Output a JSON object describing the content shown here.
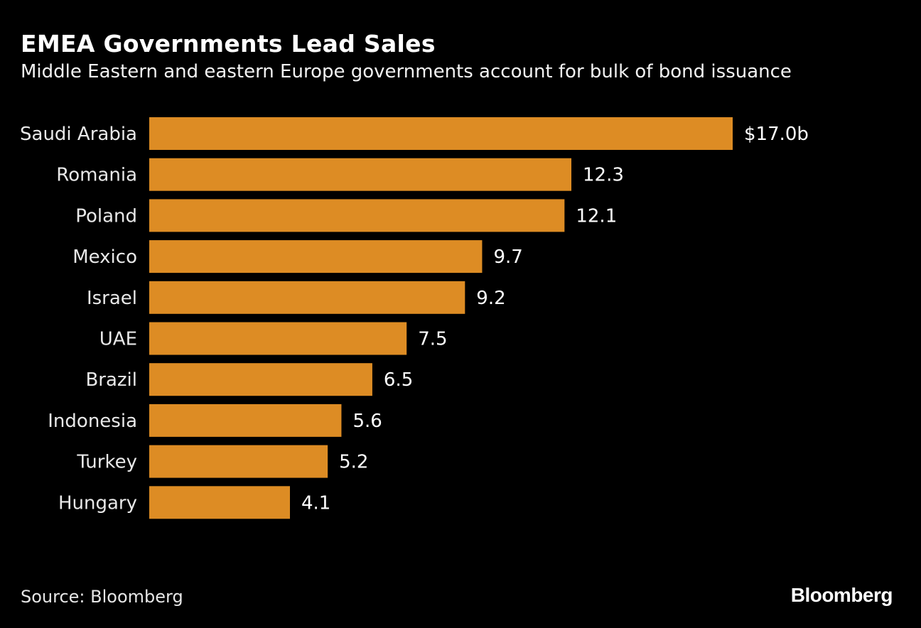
{
  "chart_data": {
    "type": "bar",
    "orientation": "horizontal",
    "title": "EMEA Governments Lead Sales",
    "subtitle": "Middle Eastern and eastern Europe governments account for bulk of bond issuance",
    "categories": [
      "Saudi Arabia",
      "Romania",
      "Poland",
      "Mexico",
      "Israel",
      "UAE",
      "Brazil",
      "Indonesia",
      "Turkey",
      "Hungary"
    ],
    "values": [
      17.0,
      12.3,
      12.1,
      9.7,
      9.2,
      7.5,
      6.5,
      5.6,
      5.2,
      4.1
    ],
    "data_labels": [
      "$17.0b",
      "12.3",
      "12.1",
      "9.7",
      "9.2",
      "7.5",
      "6.5",
      "5.6",
      "5.2",
      "4.1"
    ],
    "xlim": [
      0,
      17.0
    ],
    "grid": false,
    "bar_color": "#DD8C24",
    "background": "#000000"
  },
  "source": "Source: Bloomberg",
  "logo": "Bloomberg"
}
